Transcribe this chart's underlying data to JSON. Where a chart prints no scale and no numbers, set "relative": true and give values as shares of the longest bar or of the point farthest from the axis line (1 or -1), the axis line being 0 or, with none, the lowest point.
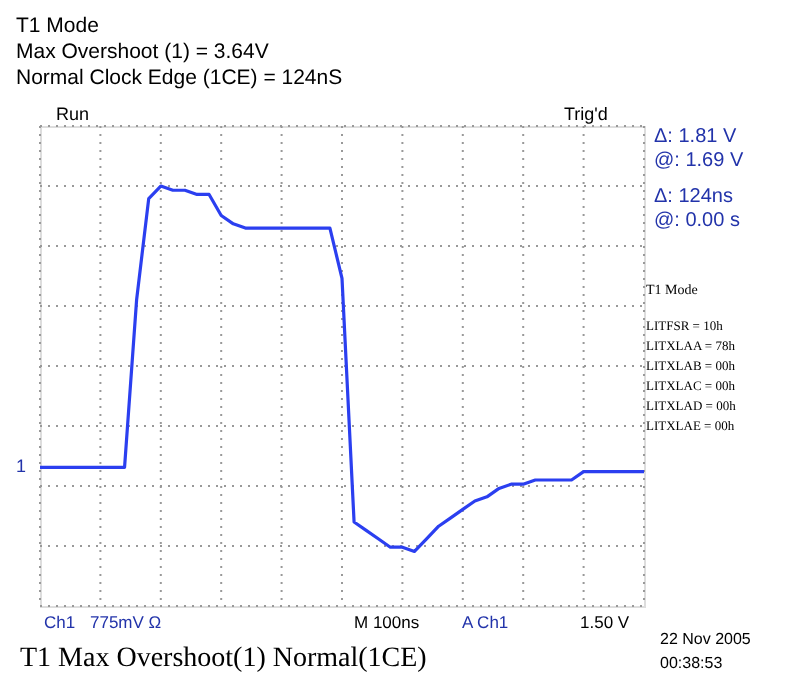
{
  "chart_data": {
    "type": "line",
    "title": "T1 Mode",
    "subtitle": [
      "Max Overshoot (1) = 3.64V",
      "Normal Clock Edge (1CE) = 124nS"
    ],
    "relative": true,
    "grid": true,
    "marker": "none",
    "line_style": "solid",
    "categories": [
      null,
      null,
      null,
      null,
      null,
      null,
      null,
      null,
      null,
      null,
      null,
      null,
      null,
      null,
      null,
      null,
      null,
      null,
      null,
      null,
      null,
      null,
      null,
      null,
      null,
      null,
      null,
      null,
      null,
      null,
      null,
      null,
      null,
      null,
      null,
      null,
      null,
      null,
      null,
      null,
      null,
      null,
      null,
      null,
      null,
      null,
      null,
      null,
      null,
      null,
      null
    ],
    "series": [
      {
        "color": "#2b3ff0",
        "values": [
          0.33,
          0.33,
          0.33,
          0.33,
          0.33,
          0.33,
          0.33,
          0.33,
          0.73,
          0.97,
          1.0,
          0.99,
          0.99,
          0.98,
          0.98,
          0.93,
          0.91,
          0.9,
          0.9,
          0.9,
          0.9,
          0.9,
          0.9,
          0.9,
          0.9,
          0.78,
          0.2,
          0.18,
          0.16,
          0.14,
          0.14,
          0.13,
          0.16,
          0.19,
          0.21,
          0.23,
          0.25,
          0.26,
          0.28,
          0.29,
          0.29,
          0.3,
          0.3,
          0.3,
          0.3,
          0.32,
          0.32,
          0.32,
          0.32,
          0.32,
          0.32
        ]
      }
    ],
    "annotations": [
      "Run",
      "Trig'd",
      "Δ: 1.81 V",
      "@: 1.69 V",
      "Δ: 124ns",
      "@: 0.00 s",
      "T1 Mode",
      "LITFSR = 10h",
      "LITXLAA = 78h",
      "LITXLAB = 00h",
      "LITXLAC = 00h",
      "LITXLAD = 00h",
      "LITXLAE = 00h",
      "1",
      "Ch1",
      "775mV Ω",
      "M 100ns",
      "A  Ch1",
      "1.50 V",
      "T1 Max Overshoot(1)  Normal(1CE)",
      "22 Nov 2005",
      "00:38:53"
    ]
  }
}
